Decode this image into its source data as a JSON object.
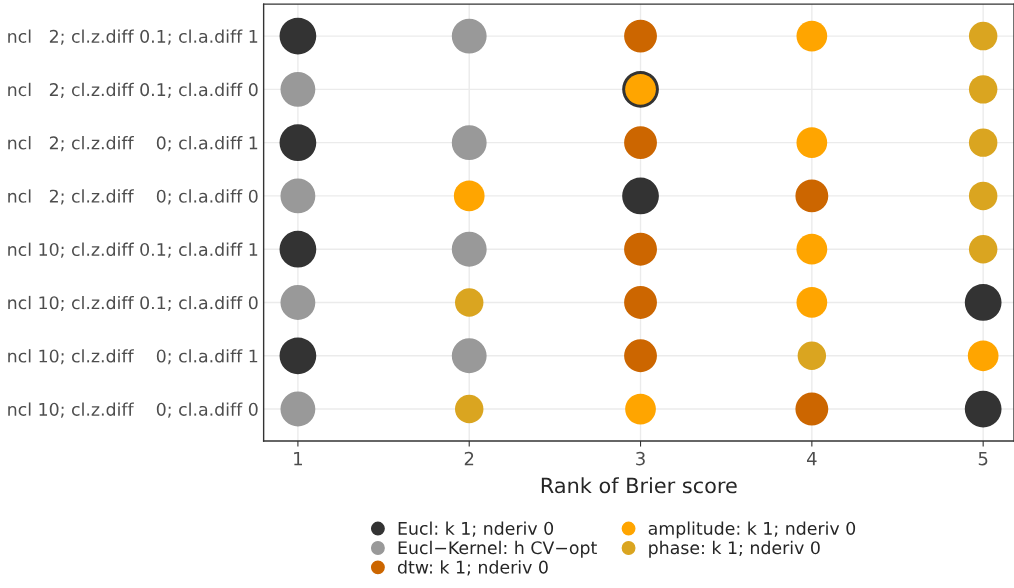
{
  "chart_data": {
    "type": "scatter",
    "orientation": "horizontal",
    "xlabel": "Rank of Brier score",
    "categories": [
      "ncl   2; cl.z.diff 0.1; cl.a.diff 1",
      "ncl   2; cl.z.diff 0.1; cl.a.diff 0",
      "ncl   2; cl.z.diff    0; cl.a.diff 1",
      "ncl   2; cl.z.diff    0; cl.a.diff 0",
      "ncl 10; cl.z.diff 0.1; cl.a.diff 1",
      "ncl 10; cl.z.diff 0.1; cl.a.diff 0",
      "ncl 10; cl.z.diff    0; cl.a.diff 1",
      "ncl 10; cl.z.diff    0; cl.a.diff 0"
    ],
    "series": [
      {
        "name": "Eucl: k 1; nderiv 0",
        "color": "#333333",
        "values": [
          1,
          3,
          1,
          3,
          1,
          5,
          1,
          5
        ]
      },
      {
        "name": "Eucl−Kernel: h CV−opt",
        "color": "#999999",
        "values": [
          2,
          1,
          2,
          1,
          2,
          1,
          2,
          1
        ]
      },
      {
        "name": "dtw: k 1; nderiv 0",
        "color": "#cc6600",
        "values": [
          3,
          null,
          3,
          4,
          3,
          3,
          3,
          4
        ]
      },
      {
        "name": "amplitude: k 1; nderiv 0",
        "color": "#ffa500",
        "values": [
          4,
          3,
          4,
          2,
          4,
          4,
          5,
          3
        ]
      },
      {
        "name": "phase: k 1; nderiv 0",
        "color": "#daa520",
        "values": [
          5,
          5,
          5,
          5,
          5,
          2,
          4,
          2
        ]
      }
    ],
    "xlim": [
      0.8,
      5.18
    ],
    "xticks": [
      1,
      2,
      3,
      4,
      5
    ],
    "grid": true,
    "legend": "bottom",
    "marker": "circle"
  }
}
